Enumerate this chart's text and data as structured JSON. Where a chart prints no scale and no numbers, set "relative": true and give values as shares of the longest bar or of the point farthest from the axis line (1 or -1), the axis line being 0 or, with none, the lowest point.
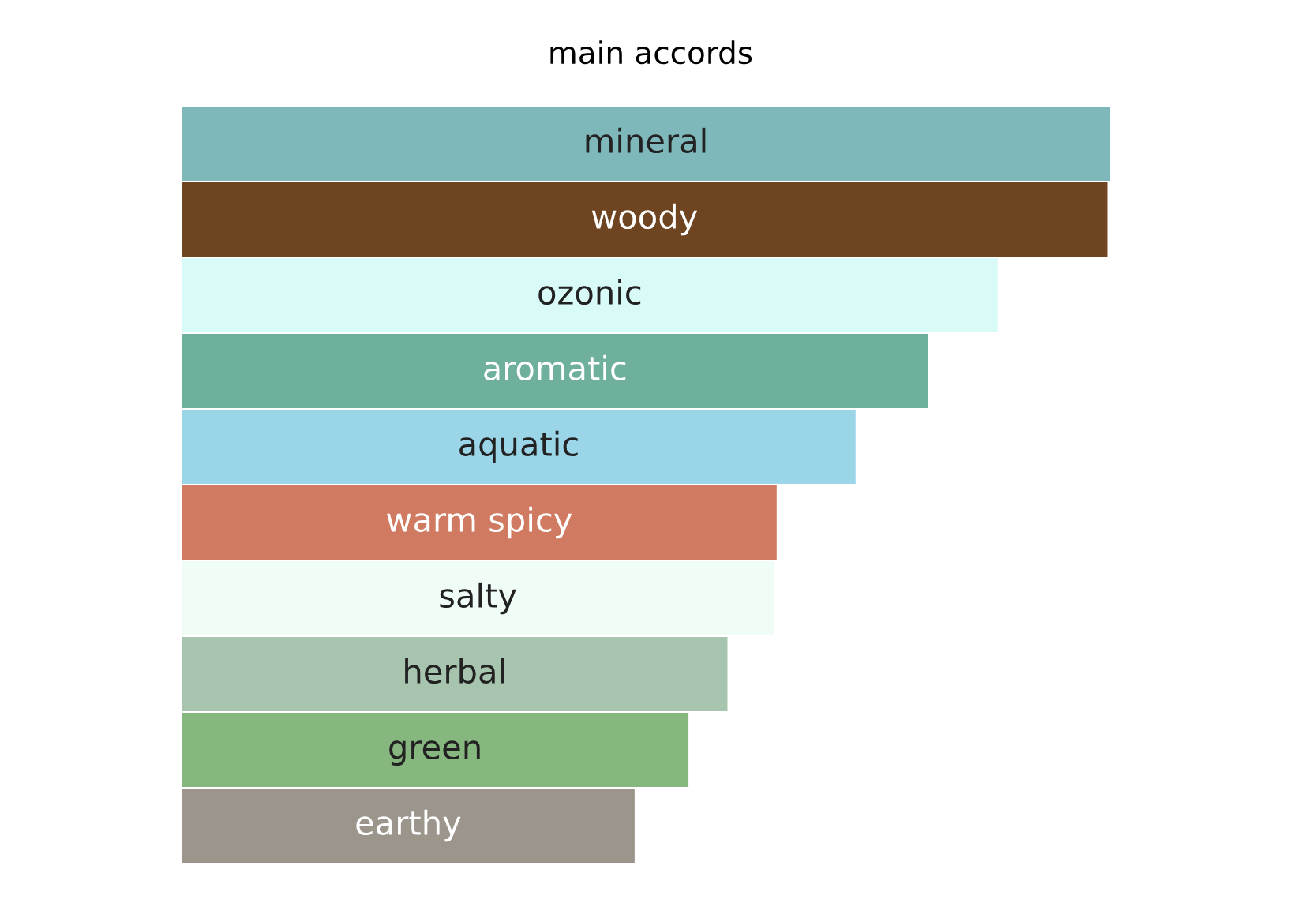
{
  "chart_data": {
    "type": "bar",
    "orientation": "horizontal",
    "relative": true,
    "title": "main accords",
    "categories": [
      "mineral",
      "woody",
      "ozonic",
      "aromatic",
      "aquatic",
      "warm spicy",
      "salty",
      "herbal",
      "green",
      "earthy"
    ],
    "values": [
      1,
      0.997,
      0.879,
      0.804,
      0.726,
      0.641,
      0.638,
      0.588,
      0.546,
      0.488
    ],
    "colors": [
      "#7fb8bb",
      "#6f4420",
      "#d8fbf8",
      "#6eaf9e",
      "#9ad6e8",
      "#d07a62",
      "#f0fdf7",
      "#a6c4ae",
      "#86b77e",
      "#9c958c"
    ]
  }
}
